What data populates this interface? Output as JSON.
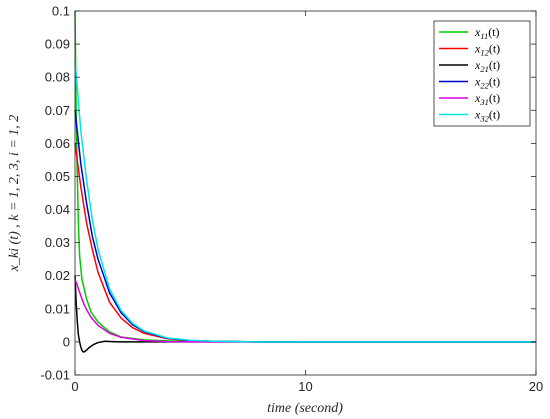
{
  "chart_data": {
    "type": "line",
    "title": "",
    "xlabel": "time (second)",
    "ylabel": "x_ki (t) , k = 1, 2, 3, i = 1, 2",
    "xlim": [
      0,
      20
    ],
    "ylim": [
      -0.01,
      0.1
    ],
    "xticks": [
      "0",
      "10",
      "20"
    ],
    "yticks": [
      "-0.01",
      "0",
      "0.01",
      "0.02",
      "0.03",
      "0.04",
      "0.05",
      "0.06",
      "0.07",
      "0.08",
      "0.09",
      "0.1"
    ],
    "grid": false,
    "legend_position": "top-right",
    "series": [
      {
        "name": "x11(t)",
        "base": "x",
        "sub": "11",
        "arg": "(t)",
        "color": "#00cc00",
        "x": [
          0,
          0.05,
          0.1,
          0.15,
          0.2,
          0.3,
          0.4,
          0.5,
          0.7,
          1.0,
          1.5,
          2.0,
          3.0,
          4.0,
          6.0,
          10.0,
          20.0
        ],
        "y": [
          0.1,
          0.07,
          0.05,
          0.035,
          0.026,
          0.019,
          0.016,
          0.013,
          0.009,
          0.006,
          0.003,
          0.0015,
          0.0006,
          0.0003,
          0.0001,
          0.0,
          0.0
        ]
      },
      {
        "name": "x12(t)",
        "base": "x",
        "sub": "12",
        "arg": "(t)",
        "color": "#ff0000",
        "x": [
          0,
          0.25,
          0.5,
          0.75,
          1.0,
          1.5,
          2.0,
          2.5,
          3.0,
          4.0,
          5.0,
          6.0,
          8.0,
          10.0,
          20.0
        ],
        "y": [
          0.06,
          0.047,
          0.036,
          0.028,
          0.021,
          0.012,
          0.0072,
          0.0043,
          0.0026,
          0.001,
          0.0004,
          0.0002,
          0.0,
          0.0,
          0.0
        ]
      },
      {
        "name": "x21(t)",
        "base": "x",
        "sub": "21",
        "arg": "(t)",
        "color": "#000000",
        "x": [
          0,
          0.05,
          0.1,
          0.15,
          0.2,
          0.25,
          0.3,
          0.35,
          0.4,
          0.5,
          0.6,
          0.8,
          1.0,
          1.3,
          1.6,
          2.0,
          3.0,
          20.0
        ],
        "y": [
          0.02,
          0.012,
          0.006,
          0.002,
          0.0,
          -0.0015,
          -0.0025,
          -0.003,
          -0.003,
          -0.0025,
          -0.0018,
          -0.0008,
          -0.0002,
          0.0002,
          0.0001,
          0.0,
          0.0,
          0.0
        ]
      },
      {
        "name": "x22(t)",
        "base": "x",
        "sub": "22",
        "arg": "(t)",
        "color": "#0000cc",
        "x": [
          0,
          0.25,
          0.5,
          0.75,
          1.0,
          1.5,
          2.0,
          2.5,
          3.0,
          4.0,
          5.0,
          6.0,
          8.0,
          10.0,
          20.0
        ],
        "y": [
          0.07,
          0.054,
          0.042,
          0.032,
          0.025,
          0.0148,
          0.0088,
          0.0052,
          0.0031,
          0.0011,
          0.0004,
          0.0002,
          0.0,
          0.0,
          0.0
        ]
      },
      {
        "name": "x31(t)",
        "base": "x",
        "sub": "31",
        "arg": "(t)",
        "color": "#dd00dd",
        "x": [
          0,
          0.1,
          0.2,
          0.3,
          0.4,
          0.5,
          0.7,
          1.0,
          1.5,
          2.0,
          3.0,
          4.0,
          6.0,
          20.0
        ],
        "y": [
          0.019,
          0.017,
          0.015,
          0.013,
          0.0112,
          0.0098,
          0.0074,
          0.005,
          0.0026,
          0.0014,
          0.0004,
          0.0001,
          0.0,
          0.0
        ]
      },
      {
        "name": "x32(t)",
        "base": "x",
        "sub": "32",
        "arg": "(t)",
        "color": "#00e5e5",
        "x": [
          0,
          0.25,
          0.5,
          0.75,
          1.0,
          1.5,
          2.0,
          2.5,
          3.0,
          4.0,
          5.0,
          6.0,
          8.0,
          10.0,
          20.0
        ],
        "y": [
          0.085,
          0.064,
          0.049,
          0.037,
          0.028,
          0.016,
          0.0095,
          0.0056,
          0.0033,
          0.0012,
          0.0005,
          0.0002,
          0.0,
          0.0,
          0.0
        ]
      }
    ]
  }
}
